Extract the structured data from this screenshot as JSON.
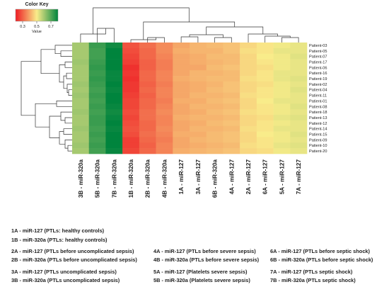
{
  "chart_data": {
    "type": "heatmap",
    "color_key": {
      "title": "Color Key",
      "axis_label": "Value",
      "ticks": [
        0.3,
        0.5,
        0.7
      ],
      "range": [
        0.2,
        0.8
      ],
      "colors": [
        "#ee1c24",
        "#f9ec8a",
        "#00843d"
      ]
    },
    "columns": [
      "3B - miR-320a",
      "5B - miR-320a",
      "7B - miR-320a",
      "1B - miR-320a",
      "2B - miR-320a",
      "4B - miR-320a",
      "1A - miR-127",
      "3A - miR-127",
      "6B - miR-320a",
      "4A - miR-127",
      "2A - miR-127",
      "6A - miR-127",
      "5A - miR-127",
      "7A - miR-127"
    ],
    "rows": [
      "Patient-03",
      "Patient-05",
      "Patient-07",
      "Patient-17",
      "Patient-06",
      "Patient-16",
      "Patient-19",
      "Patient-02",
      "Patient-04",
      "Patient-11",
      "Patient-01",
      "Patient-08",
      "Patient-18",
      "Patient-13",
      "Patient-12",
      "Patient-14",
      "Patient-15",
      "Patient-09",
      "Patient-10",
      "Patient-20"
    ],
    "values": [
      [
        0.6,
        0.73,
        0.78,
        0.28,
        0.32,
        0.36,
        0.4,
        0.42,
        0.43,
        0.44,
        0.47,
        0.49,
        0.51,
        0.52
      ],
      [
        0.6,
        0.72,
        0.8,
        0.27,
        0.31,
        0.36,
        0.41,
        0.42,
        0.42,
        0.44,
        0.48,
        0.49,
        0.52,
        0.52
      ],
      [
        0.6,
        0.72,
        0.8,
        0.26,
        0.31,
        0.35,
        0.4,
        0.41,
        0.43,
        0.43,
        0.47,
        0.5,
        0.51,
        0.53
      ],
      [
        0.61,
        0.73,
        0.81,
        0.25,
        0.3,
        0.34,
        0.4,
        0.41,
        0.42,
        0.43,
        0.47,
        0.49,
        0.51,
        0.52
      ],
      [
        0.6,
        0.74,
        0.8,
        0.23,
        0.3,
        0.34,
        0.4,
        0.4,
        0.43,
        0.44,
        0.47,
        0.48,
        0.51,
        0.52
      ],
      [
        0.6,
        0.73,
        0.79,
        0.24,
        0.31,
        0.35,
        0.4,
        0.42,
        0.42,
        0.43,
        0.47,
        0.49,
        0.52,
        0.52
      ],
      [
        0.6,
        0.74,
        0.79,
        0.23,
        0.31,
        0.35,
        0.41,
        0.42,
        0.43,
        0.43,
        0.48,
        0.49,
        0.52,
        0.53
      ],
      [
        0.61,
        0.73,
        0.8,
        0.24,
        0.3,
        0.34,
        0.4,
        0.41,
        0.42,
        0.44,
        0.47,
        0.48,
        0.51,
        0.52
      ],
      [
        0.6,
        0.72,
        0.79,
        0.24,
        0.31,
        0.35,
        0.4,
        0.41,
        0.43,
        0.44,
        0.47,
        0.49,
        0.51,
        0.53
      ],
      [
        0.61,
        0.73,
        0.8,
        0.25,
        0.3,
        0.35,
        0.4,
        0.42,
        0.42,
        0.43,
        0.48,
        0.49,
        0.51,
        0.52
      ],
      [
        0.6,
        0.72,
        0.8,
        0.26,
        0.31,
        0.34,
        0.41,
        0.41,
        0.43,
        0.44,
        0.47,
        0.5,
        0.52,
        0.52
      ],
      [
        0.6,
        0.73,
        0.79,
        0.26,
        0.31,
        0.35,
        0.4,
        0.42,
        0.42,
        0.43,
        0.47,
        0.49,
        0.51,
        0.53
      ],
      [
        0.61,
        0.72,
        0.78,
        0.27,
        0.32,
        0.36,
        0.4,
        0.41,
        0.43,
        0.44,
        0.48,
        0.49,
        0.51,
        0.52
      ],
      [
        0.6,
        0.73,
        0.79,
        0.26,
        0.32,
        0.35,
        0.41,
        0.42,
        0.42,
        0.43,
        0.47,
        0.48,
        0.52,
        0.53
      ],
      [
        0.6,
        0.73,
        0.8,
        0.27,
        0.31,
        0.35,
        0.4,
        0.41,
        0.43,
        0.44,
        0.47,
        0.49,
        0.51,
        0.52
      ],
      [
        0.61,
        0.72,
        0.79,
        0.28,
        0.31,
        0.36,
        0.4,
        0.42,
        0.42,
        0.43,
        0.48,
        0.49,
        0.52,
        0.52
      ],
      [
        0.6,
        0.73,
        0.8,
        0.27,
        0.32,
        0.35,
        0.41,
        0.41,
        0.43,
        0.44,
        0.47,
        0.5,
        0.51,
        0.53
      ],
      [
        0.6,
        0.72,
        0.81,
        0.25,
        0.31,
        0.34,
        0.4,
        0.42,
        0.43,
        0.44,
        0.47,
        0.49,
        0.51,
        0.52
      ],
      [
        0.61,
        0.73,
        0.82,
        0.25,
        0.3,
        0.35,
        0.4,
        0.41,
        0.42,
        0.43,
        0.48,
        0.49,
        0.52,
        0.53
      ],
      [
        0.6,
        0.72,
        0.79,
        0.26,
        0.31,
        0.35,
        0.41,
        0.42,
        0.43,
        0.44,
        0.47,
        0.48,
        0.51,
        0.52
      ]
    ],
    "dendrograms": {
      "rows": true,
      "columns": true
    }
  },
  "legend": [
    [
      "1A - miR-127 (PTLs: healthy controls)",
      "1B - miR-320a (PTLs: healthy controls)"
    ],
    [
      "2A - miR-127 (PTLs before uncomplicated sepsis)",
      "2B - miR-320a (PTLs before uncomplicated sepsis)"
    ],
    [
      "3A - miR-127 (PTLs uncomplicated sepsis)",
      "3B - miR-320a (PTLs uncomplicated sepsis)"
    ],
    [
      "4A - miR-127 (PTLs before severe sepsis)",
      "4B - miR-320a (PTLs before severe sepsis)"
    ],
    [
      "5A - miR-127 (Platelets severe sepsis)",
      "5B - miR-320a (Platelets severe sepsis)"
    ],
    [
      "6A - miR-127 (PTLs before septic shock)",
      "6B - miR-320a (PTLs before septic shock)"
    ],
    [
      "7A - miR-127 (PTLs septic shock)",
      "7B - miR-320a (PTLs septic shock)"
    ]
  ]
}
